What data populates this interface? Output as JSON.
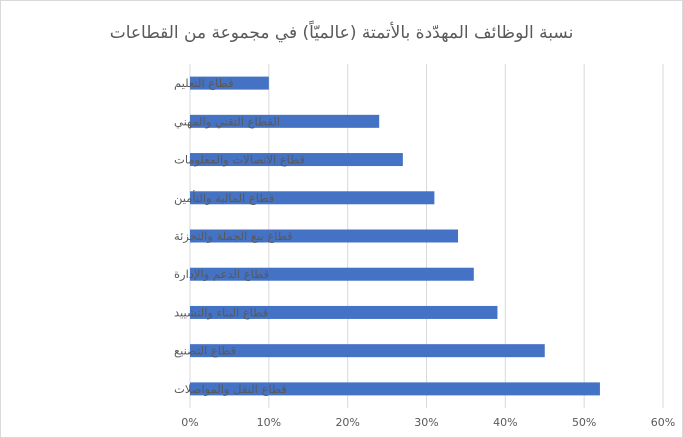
{
  "chart_data": {
    "type": "bar",
    "orientation": "horizontal",
    "title": "نسبة الوظائف المهدّدة بالأتمتة (عالميّاً) في مجموعة من القطاعات",
    "categories": [
      "قطاع التعليم",
      "القطاع التقني والمهني",
      "قطاع الاتصالات والمعلومات",
      "قطاع المالية والتأمين",
      "قطاع بيع الجملة والتجزئة",
      "قطاع الدعم والإدارة",
      "قطاع البناء والتشييد",
      "قطاع التصنيع",
      "قطاع النقل والمواصلات"
    ],
    "values": [
      10,
      24,
      27,
      31,
      34,
      36,
      39,
      45,
      52
    ],
    "xlim": [
      0,
      60
    ],
    "xticks": [
      0,
      10,
      20,
      30,
      40,
      50,
      60
    ],
    "xtick_labels": [
      "0%",
      "10%",
      "20%",
      "30%",
      "40%",
      "50%",
      "60%"
    ],
    "grid": true,
    "bar_color": "#4472c4",
    "grid_color": "#d9d9d9",
    "text_color": "#595959"
  }
}
